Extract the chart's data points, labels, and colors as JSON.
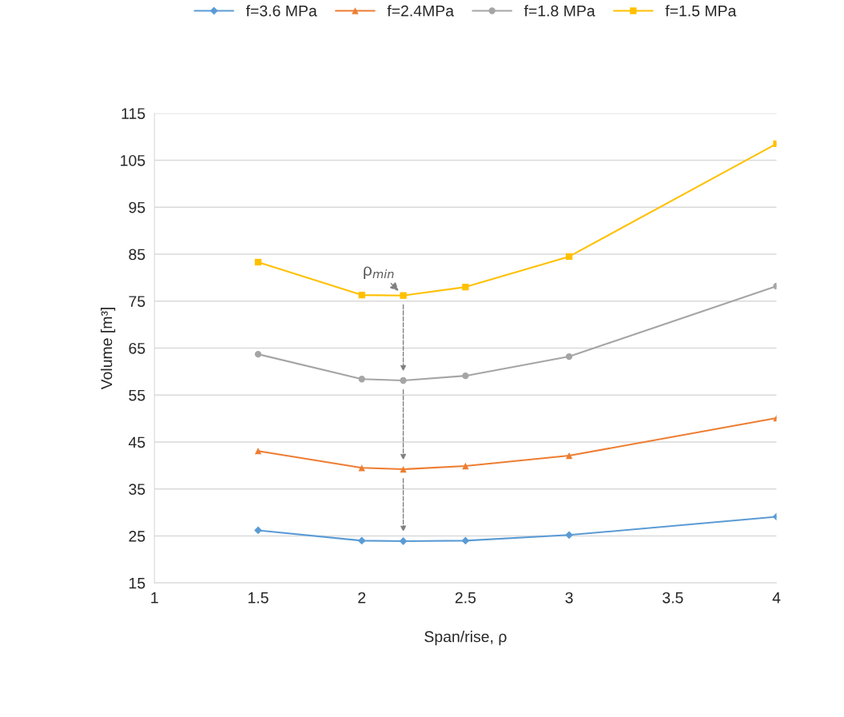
{
  "chart_data": {
    "type": "line",
    "xlabel": "Span/rise, ρ",
    "ylabel": "Volume [m³]",
    "x": [
      1.5,
      2,
      2.2,
      2.5,
      3,
      4
    ],
    "series": [
      {
        "name": "f=3.6 MPa",
        "color": "#5b9bd5",
        "marker": "diamond",
        "values": [
          26.2,
          24.0,
          23.9,
          24.0,
          25.2,
          29.1
        ]
      },
      {
        "name": "f=2.4MPa",
        "color": "#ed7d31",
        "marker": "triangle",
        "values": [
          43.1,
          39.5,
          39.2,
          39.9,
          42.1,
          50.1
        ]
      },
      {
        "name": "f=1.8 MPa",
        "color": "#a5a5a5",
        "marker": "circle",
        "values": [
          63.7,
          58.4,
          58.1,
          59.1,
          63.2,
          78.2
        ]
      },
      {
        "name": "f=1.5 MPa",
        "color": "#ffc000",
        "marker": "square",
        "values": [
          83.3,
          76.3,
          76.2,
          78.0,
          84.5,
          108.5
        ]
      }
    ],
    "xlim": [
      1,
      4
    ],
    "xticks": [
      1,
      1.5,
      2,
      2.5,
      3,
      3.5,
      4
    ],
    "ylim": [
      15,
      115
    ],
    "yticks": [
      15,
      25,
      35,
      45,
      55,
      65,
      75,
      85,
      95,
      105,
      115
    ],
    "grid": "y",
    "legend": "top",
    "annotations": [
      {
        "text": "ρ$_{min}$",
        "x": 2.2,
        "y": 76.2
      }
    ]
  }
}
